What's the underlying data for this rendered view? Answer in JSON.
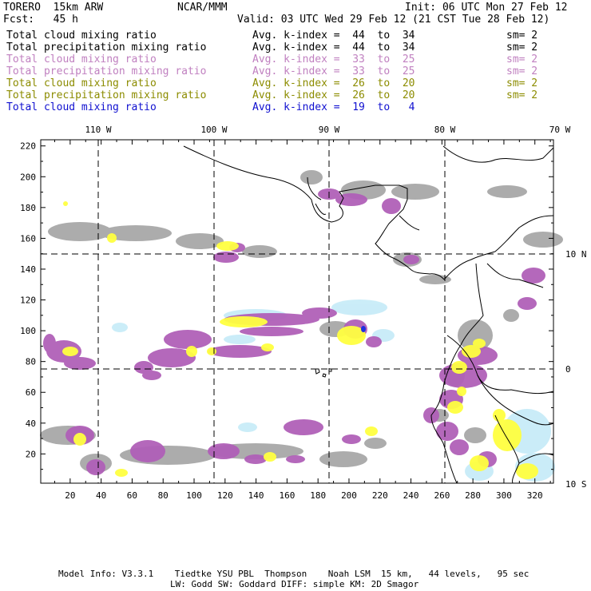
{
  "header": {
    "model": "TORERO  15km ARW",
    "center": "NCAR/MMM",
    "init": "Init: 06 UTC Mon 27 Feb 12",
    "fcst": "Fcst:   45 h",
    "valid": "Valid: 03 UTC Wed 29 Feb 12 (21 CST Tue 28 Feb 12)"
  },
  "legend": [
    {
      "field": "Total cloud mixing ratio",
      "index": "Avg. k-index =  44  to  34",
      "sm": "sm= 2",
      "color": "#000000"
    },
    {
      "field": "Total precipitation mixing ratio",
      "index": "Avg. k-index =  44  to  34",
      "sm": "sm= 2",
      "color": "#000000"
    },
    {
      "field": "Total cloud mixing ratio",
      "index": "Avg. k-index =  33  to  25",
      "sm": "sm= 2",
      "color": "#c080c0"
    },
    {
      "field": "Total precipitation mixing ratio",
      "index": "Avg. k-index =  33  to  25",
      "sm": "sm= 2",
      "color": "#c080c0"
    },
    {
      "field": "Total cloud mixing ratio",
      "index": "Avg. k-index =  26  to  20",
      "sm": "sm= 2",
      "color": "#8c8c00"
    },
    {
      "field": "Total precipitation mixing ratio",
      "index": "Avg. k-index =  26  to  20",
      "sm": "sm= 2",
      "color": "#8c8c00"
    },
    {
      "field": "Total cloud mixing ratio",
      "index": "Avg. k-index =  19  to   4",
      "sm": "",
      "color": "#1010d0"
    }
  ],
  "map": {
    "lon_labels": [
      "110 W",
      "100 W",
      "90 W",
      "80 W",
      "70 W"
    ],
    "lat_labels": [
      "10 N",
      "0",
      "10 S"
    ],
    "x_ticks": [
      "20",
      "40",
      "60",
      "80",
      "100",
      "120",
      "140",
      "160",
      "180",
      "200",
      "220",
      "240",
      "260",
      "280",
      "300",
      "320"
    ],
    "y_ticks": [
      "20",
      "40",
      "60",
      "80",
      "100",
      "120",
      "140",
      "160",
      "180",
      "200",
      "220"
    ],
    "colors": {
      "gray": "#a8a8a8",
      "purple": "#b060b8",
      "yellow": "#ffff40",
      "lightblue": "#c8ecf8",
      "blue": "#2030e0"
    }
  },
  "footer": {
    "line1": "Model Info: V3.3.1    Tiedtke YSU PBL  Thompson    Noah LSM  15 km,   44 levels,   95 sec",
    "line2": "LW: Godd SW: Goddard DIFF: simple KM: 2D Smagor"
  }
}
